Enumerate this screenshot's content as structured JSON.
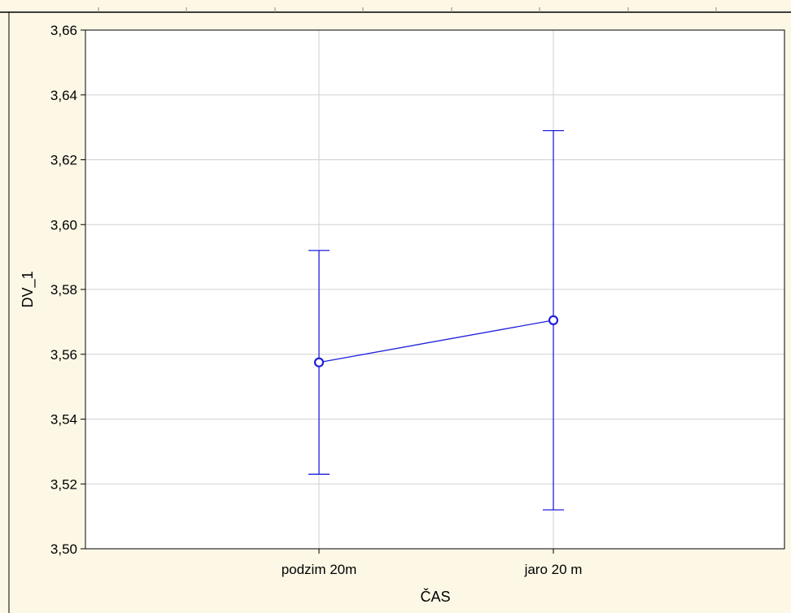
{
  "chart_data": {
    "type": "line",
    "title": "",
    "xlabel": "ČAS",
    "ylabel": "DV_1",
    "categories": [
      "podzim 20m",
      "jaro 20 m"
    ],
    "series": [
      {
        "values": [
          3.5575,
          3.5705
        ],
        "error_lower": [
          3.523,
          3.512
        ],
        "error_upper": [
          3.592,
          3.629
        ],
        "color": "#1f1fdc"
      }
    ],
    "ylim": [
      3.5,
      3.66
    ],
    "yticks": [
      3.5,
      3.52,
      3.54,
      3.56,
      3.58,
      3.6,
      3.62,
      3.64,
      3.66
    ],
    "ytick_labels": [
      "3,50",
      "3,52",
      "3,54",
      "3,56",
      "3,58",
      "3,60",
      "3,62",
      "3,64",
      "3,66"
    ],
    "grid": true,
    "colors": {
      "background": "#fdf8e6",
      "plot_area": "#ffffff",
      "grid": "#d0d0d0",
      "series": "#1f1fdc"
    }
  }
}
